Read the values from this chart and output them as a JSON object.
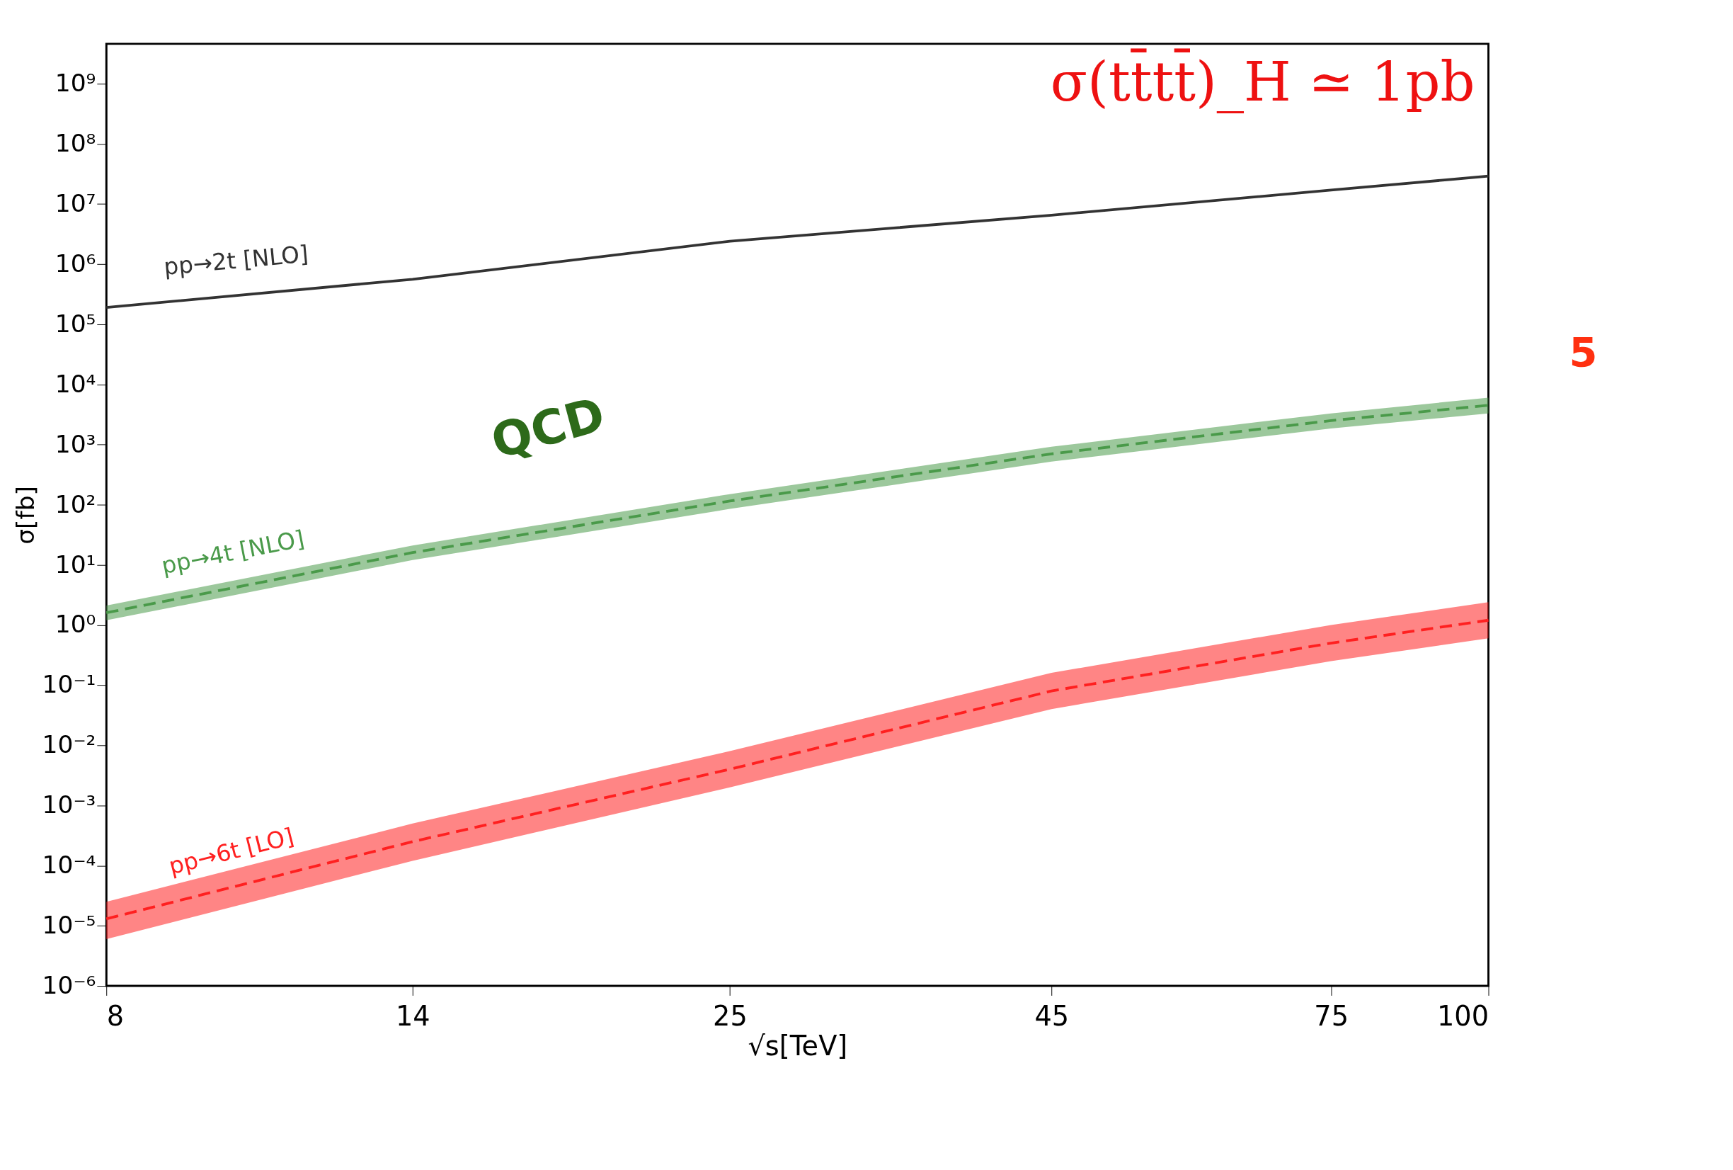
{
  "chart_data": {
    "type": "line",
    "xlabel": "√s[TeV]",
    "ylabel": "σ[fb]",
    "log": "xy",
    "grid": false,
    "legend": false,
    "x": [
      8,
      14,
      25,
      45,
      75,
      100
    ],
    "xlim": [
      8,
      100
    ],
    "xticks": [
      8,
      14,
      25,
      45,
      75,
      100
    ],
    "ylim": [
      1e-06,
      4600000000.0
    ],
    "yticks": [
      {
        "value": 1e-06,
        "label": "10⁻⁶"
      },
      {
        "value": 1e-05,
        "label": "10⁻⁵"
      },
      {
        "value": 0.0001,
        "label": "10⁻⁴"
      },
      {
        "value": 0.001,
        "label": "10⁻³"
      },
      {
        "value": 0.01,
        "label": "10⁻²"
      },
      {
        "value": 0.1,
        "label": "10⁻¹"
      },
      {
        "value": 1,
        "label": "10⁰"
      },
      {
        "value": 10,
        "label": "10¹"
      },
      {
        "value": 100,
        "label": "10²"
      },
      {
        "value": 1000,
        "label": "10³"
      },
      {
        "value": 10000,
        "label": "10⁴"
      },
      {
        "value": 100000,
        "label": "10⁵"
      },
      {
        "value": 1000000,
        "label": "10⁶"
      },
      {
        "value": 10000000,
        "label": "10⁷"
      },
      {
        "value": 100000000,
        "label": "10⁸"
      },
      {
        "value": 1000000000,
        "label": "10⁹"
      }
    ],
    "series": [
      {
        "name": "pp→2t [NLO]",
        "color": "#333333",
        "line_style": "solid",
        "values": [
          190000,
          560000,
          2400000,
          6500000,
          17000000,
          29000000
        ]
      },
      {
        "name": "pp→4t [NLO]",
        "color": "#4a9a4a",
        "line_style": "dashed",
        "values": [
          1.6,
          16,
          115,
          700,
          2500,
          4500
        ],
        "lower": [
          1.2,
          12,
          85,
          520,
          1850,
          3300
        ],
        "upper": [
          2.1,
          21,
          150,
          920,
          3300,
          6000
        ]
      },
      {
        "name": "pp→6t [LO]",
        "color": "#ff2020",
        "line_style": "dashed",
        "values": [
          1.3e-05,
          0.00025,
          0.004,
          0.08,
          0.5,
          1.2
        ],
        "lower": [
          6e-06,
          0.00012,
          0.002,
          0.04,
          0.25,
          0.6
        ],
        "upper": [
          2.5e-05,
          0.0005,
          0.008,
          0.16,
          1.0,
          2.4
        ]
      }
    ],
    "annotations": [
      "σ(tt̄tt̄)_H ≃ 1pb",
      "QCD",
      "5"
    ]
  }
}
